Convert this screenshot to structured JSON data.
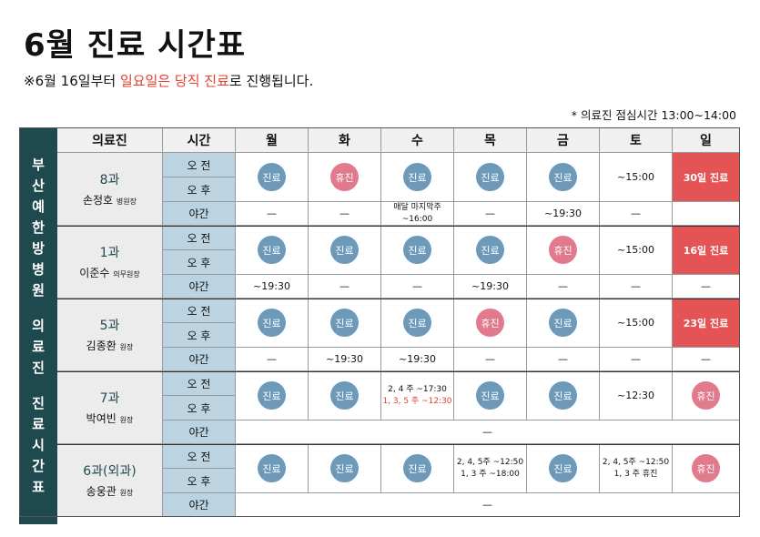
{
  "page": {
    "title": "6월 진료 시간표",
    "notice_pre": "※6월 16일부터 ",
    "notice_red": "일요일은 당직 진료",
    "notice_post": "로 진행됩니다.",
    "lunch": "* 의료진 점심시간 13:00~14:00"
  },
  "side_label": [
    "부",
    "산",
    "예",
    "한",
    "방",
    "병",
    "원",
    "",
    "의",
    "료",
    "진",
    "",
    "진",
    "료",
    "시",
    "간",
    "표"
  ],
  "headers": [
    "의료진",
    "시간",
    "월",
    "화",
    "수",
    "목",
    "금",
    "토",
    "일"
  ],
  "slots": [
    "오 전",
    "오 후",
    "야간"
  ],
  "colors": {
    "primary": "#1e4a4f",
    "circle_blue": "#6d9ab9",
    "circle_pink": "#e07a8c",
    "sunday_red": "#e45454",
    "slot_bg": "#bcd4e2"
  },
  "doctors": [
    {
      "dept": "8과",
      "name": "손정호",
      "role": "병원장",
      "day": [
        {
          "t": "circle",
          "c": "blue",
          "v": "진료"
        },
        {
          "t": "circle",
          "c": "pink",
          "v": "휴진"
        },
        {
          "t": "circle",
          "c": "blue",
          "v": "진료"
        },
        {
          "t": "circle",
          "c": "blue",
          "v": "진료"
        },
        {
          "t": "circle",
          "c": "blue",
          "v": "진료"
        },
        {
          "t": "text",
          "v": "~15:00"
        },
        {
          "t": "red",
          "v": "30일 진료"
        }
      ],
      "night": [
        "—",
        "—",
        "매달 마지막주\n~16:00",
        "—",
        "~19:30",
        "—",
        ""
      ]
    },
    {
      "dept": "1과",
      "name": "이준수",
      "role": "의무원장",
      "day": [
        {
          "t": "circle",
          "c": "blue",
          "v": "진료"
        },
        {
          "t": "circle",
          "c": "blue",
          "v": "진료"
        },
        {
          "t": "circle",
          "c": "blue",
          "v": "진료"
        },
        {
          "t": "circle",
          "c": "blue",
          "v": "진료"
        },
        {
          "t": "circle",
          "c": "pink",
          "v": "휴진"
        },
        {
          "t": "text",
          "v": "~15:00"
        },
        {
          "t": "red",
          "v": "16일 진료"
        }
      ],
      "night": [
        "~19:30",
        "—",
        "—",
        "~19:30",
        "—",
        "—",
        "—"
      ]
    },
    {
      "dept": "5과",
      "name": "김종환",
      "role": "원장",
      "day": [
        {
          "t": "circle",
          "c": "blue",
          "v": "진료"
        },
        {
          "t": "circle",
          "c": "blue",
          "v": "진료"
        },
        {
          "t": "circle",
          "c": "blue",
          "v": "진료"
        },
        {
          "t": "circle",
          "c": "pink",
          "v": "휴진"
        },
        {
          "t": "circle",
          "c": "blue",
          "v": "진료"
        },
        {
          "t": "text",
          "v": "~15:00"
        },
        {
          "t": "red",
          "v": "23일 진료"
        }
      ],
      "night": [
        "—",
        "~19:30",
        "~19:30",
        "—",
        "—",
        "—",
        "—"
      ]
    },
    {
      "dept": "7과",
      "name": "박여빈",
      "role": "원장",
      "day": [
        {
          "t": "circle",
          "c": "blue",
          "v": "진료"
        },
        {
          "t": "circle",
          "c": "blue",
          "v": "진료"
        },
        {
          "t": "two",
          "v": "2, 4 주 ~17:30",
          "v2": "1, 3, 5 주 ~12:30",
          "red2": true
        },
        {
          "t": "circle",
          "c": "blue",
          "v": "진료"
        },
        {
          "t": "circle",
          "c": "blue",
          "v": "진료"
        },
        {
          "t": "text",
          "v": "~12:30"
        },
        {
          "t": "circle",
          "c": "pink",
          "v": "휴진"
        }
      ],
      "night_merged": "—"
    },
    {
      "dept": "6과(외과)",
      "name": "송웅관",
      "role": "원장",
      "day": [
        {
          "t": "circle",
          "c": "blue",
          "v": "진료"
        },
        {
          "t": "circle",
          "c": "blue",
          "v": "진료"
        },
        {
          "t": "circle",
          "c": "blue",
          "v": "진료"
        },
        {
          "t": "two",
          "v": "2, 4, 5주 ~12:50",
          "v2": "1, 3 주 ~18:00"
        },
        {
          "t": "circle",
          "c": "blue",
          "v": "진료"
        },
        {
          "t": "two",
          "v": "2, 4, 5주 ~12:50",
          "v2": "1, 3 주 휴진"
        },
        {
          "t": "circle",
          "c": "pink",
          "v": "휴진"
        }
      ],
      "night_merged": "—"
    }
  ]
}
